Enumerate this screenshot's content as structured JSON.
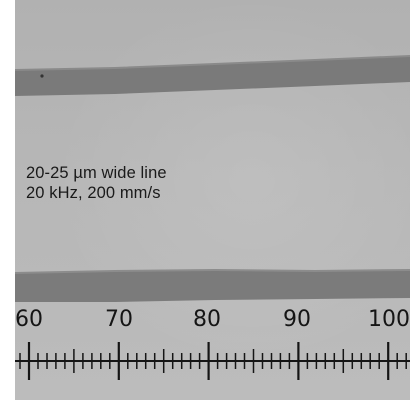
{
  "caption": {
    "line1": "20-25 µm wide line",
    "line2": "20 kHz, 200 mm/s"
  },
  "scale": {
    "labels": [
      "60",
      "70",
      "80",
      "90",
      "100"
    ],
    "minor_divisions_per_major": 10
  },
  "colors": {
    "background": "#b6b6b6",
    "trace": "#777777",
    "text": "#1a1a1a",
    "ruler_ink": "#151515"
  }
}
